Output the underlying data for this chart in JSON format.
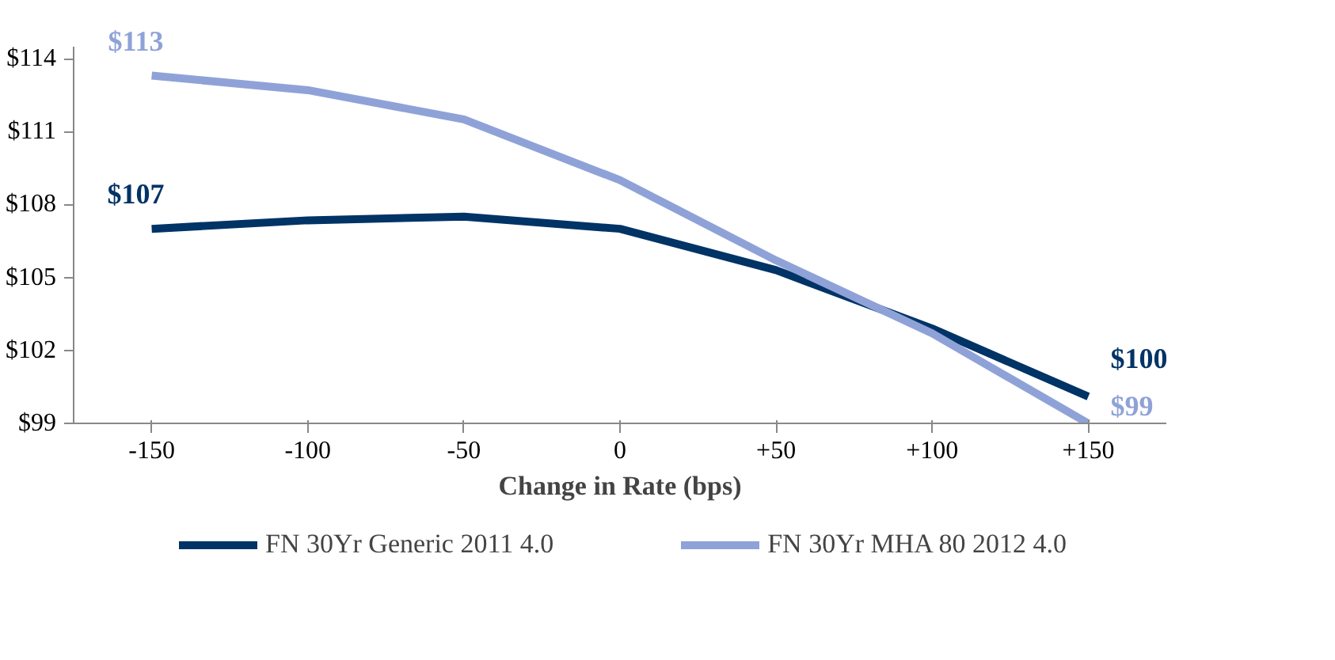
{
  "chart_data": {
    "type": "line",
    "xlabel": "Change in Rate (bps)",
    "categories": [
      "-150",
      "-100",
      "-50",
      "0",
      "+50",
      "+100",
      "+150"
    ],
    "ylim": [
      99,
      114.5
    ],
    "yticks": [
      {
        "value": 99,
        "label": "$99"
      },
      {
        "value": 102,
        "label": "$102"
      },
      {
        "value": 105,
        "label": "$105"
      },
      {
        "value": 108,
        "label": "$108"
      },
      {
        "value": 111,
        "label": "$111"
      },
      {
        "value": 114,
        "label": "$114"
      }
    ],
    "series": [
      {
        "name": "FN 30Yr Generic 2011 4.0",
        "color": "#003366",
        "values": [
          107.0,
          107.35,
          107.5,
          107.0,
          105.3,
          102.9,
          100.1
        ],
        "value_labels": [
          "$107",
          null,
          null,
          null,
          null,
          null,
          "$100"
        ]
      },
      {
        "name": "FN 30Yr MHA 80 2012 4.0",
        "color": "#8fa2d8",
        "values": [
          113.3,
          112.7,
          111.5,
          109.0,
          105.7,
          102.7,
          99.0
        ],
        "value_labels": [
          "$113",
          null,
          null,
          null,
          null,
          null,
          "$99"
        ]
      }
    ],
    "grid": false,
    "legend": "bottom",
    "marker": "none",
    "line_style": "solid"
  }
}
